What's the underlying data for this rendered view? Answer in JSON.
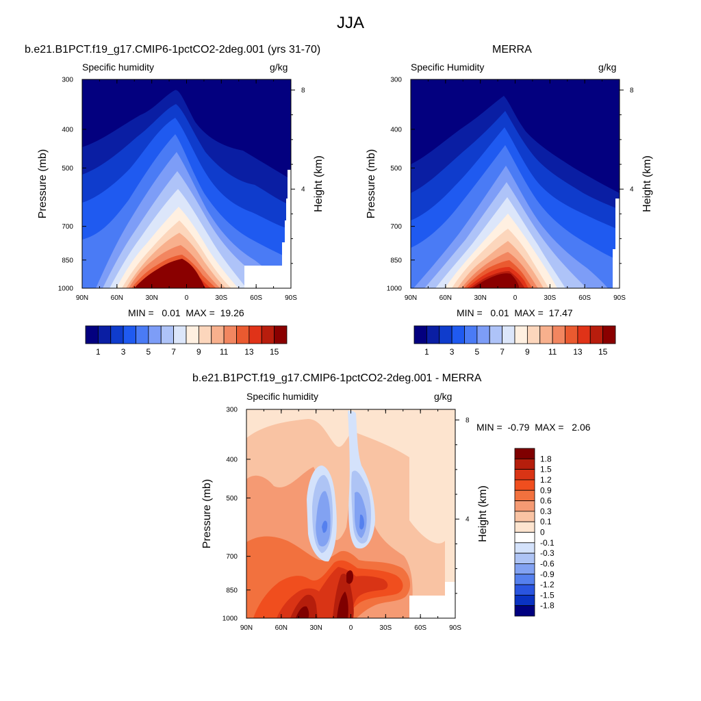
{
  "figure_title": "JJA",
  "chart_data": [
    {
      "type": "heatmap",
      "title": "b.e21.B1PCT.f19_g17.CMIP6-1pctCO2-2deg.001 (yrs 31-70)",
      "variable": "Specific humidity",
      "units": "g/kg",
      "xlabel": "",
      "ylabel": "Pressure (mb)",
      "y2label": "Height (km)",
      "x_ticks": [
        "90N",
        "60N",
        "30N",
        "0",
        "30S",
        "60S",
        "90S"
      ],
      "y_ticks": [
        "300",
        "400",
        "500",
        "700",
        "850",
        "1000"
      ],
      "y2_ticks": [
        "8",
        "4"
      ],
      "min_max_text": "MIN =   0.01  MAX =  19.26",
      "stats": {
        "min": 0.01,
        "max": 19.26
      },
      "colorbar_labels": [
        "1",
        "3",
        "5",
        "7",
        "9",
        "11",
        "13",
        "15"
      ],
      "colorbar_colors": [
        "#03007f",
        "#0a1ea3",
        "#0f3ccc",
        "#1f5af0",
        "#4a7bf5",
        "#7d9df7",
        "#aec3f8",
        "#dce6fa",
        "#fff0e1",
        "#fcd6bc",
        "#f8b08d",
        "#f28660",
        "#ea5a30",
        "#e03318",
        "#b81d0d",
        "#8a0000"
      ],
      "levels": [
        1,
        2,
        3,
        4,
        5,
        6,
        7,
        8,
        9,
        10,
        11,
        12,
        13,
        14,
        15
      ]
    },
    {
      "type": "heatmap",
      "title": "MERRA",
      "variable": "Specific Humidity",
      "units": "g/kg",
      "ylabel": "Pressure (mb)",
      "y2label": "Height (km)",
      "x_ticks": [
        "90N",
        "60N",
        "30N",
        "0",
        "30S",
        "60S",
        "90S"
      ],
      "y_ticks": [
        "300",
        "400",
        "500",
        "700",
        "850",
        "1000"
      ],
      "y2_ticks": [
        "8",
        "4"
      ],
      "min_max_text": "MIN =   0.01  MAX =  17.47",
      "stats": {
        "min": 0.01,
        "max": 17.47
      },
      "colorbar_labels": [
        "1",
        "3",
        "5",
        "7",
        "9",
        "11",
        "13",
        "15"
      ],
      "levels": [
        1,
        2,
        3,
        4,
        5,
        6,
        7,
        8,
        9,
        10,
        11,
        12,
        13,
        14,
        15
      ]
    },
    {
      "type": "heatmap",
      "title": "b.e21.B1PCT.f19_g17.CMIP6-1pctCO2-2deg.001 - MERRA",
      "variable": "Specific humidity",
      "units": "g/kg",
      "ylabel": "Pressure (mb)",
      "y2label": "Height (km)",
      "x_ticks": [
        "90N",
        "60N",
        "30N",
        "0",
        "30S",
        "60S",
        "90S"
      ],
      "y_ticks": [
        "300",
        "400",
        "500",
        "700",
        "850",
        "1000"
      ],
      "y2_ticks": [
        "8",
        "4"
      ],
      "min_max_text": "MIN =  -0.79  MAX =   2.06",
      "stats": {
        "min": -0.79,
        "max": 2.06
      },
      "colorbar_labels": [
        "1.8",
        "1.5",
        "1.2",
        "0.9",
        "0.6",
        "0.3",
        "0.1",
        "0",
        "-0.1",
        "-0.3",
        "-0.6",
        "-0.9",
        "-1.2",
        "-1.5",
        "-1.8"
      ],
      "colorbar_colors": [
        "#7f0000",
        "#b51e0c",
        "#d93415",
        "#f04e1e",
        "#f2713e",
        "#f59a73",
        "#f9c3a3",
        "#fde4cf",
        "#ffffff",
        "#d4e2fb",
        "#aec4f5",
        "#82a2f2",
        "#5580ee",
        "#2a55e0",
        "#0a32c2",
        "#00007f"
      ]
    }
  ]
}
